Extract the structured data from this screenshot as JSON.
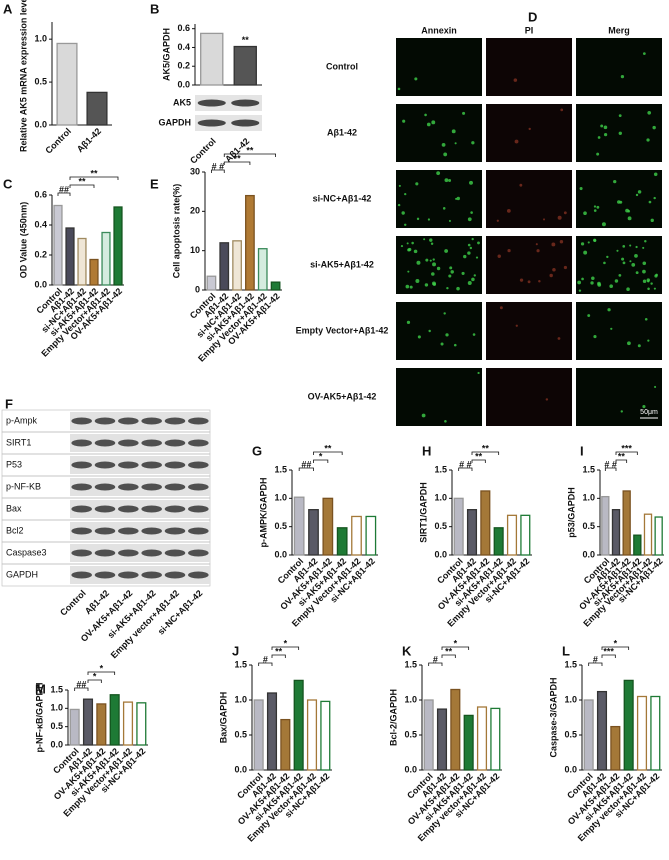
{
  "chart_data": [
    {
      "type": "bar",
      "panel": "A",
      "ylabel": "Relative AK5 mRNA expression level",
      "categories": [
        "Control",
        "Aβ1-42"
      ],
      "values": [
        0.95,
        0.38
      ],
      "fills": [
        "#d9d9d9",
        "#555555"
      ],
      "strokes": [
        "#999999",
        "#333333"
      ],
      "ylim": [
        0,
        1.2
      ],
      "yticks": [
        {
          "value": 0,
          "label": "0.0"
        },
        0.5,
        {
          "value": 1,
          "label": "1.0"
        }
      ],
      "annotations": []
    },
    {
      "type": "bar",
      "panel": "B",
      "ylabel": "AK5/GAPDH",
      "categories": [
        "Control",
        "Aβ1-42"
      ],
      "values": [
        0.55,
        0.41
      ],
      "fills": [
        "#d9d9d9",
        "#555555"
      ],
      "strokes": [
        "#999999",
        "#333333"
      ],
      "ylim": [
        0,
        0.65
      ],
      "yticks": [
        {
          "value": 0,
          "label": "0.0"
        },
        0.2,
        0.4,
        0.6
      ],
      "annotations": [
        "**"
      ],
      "blot_labels": [
        "AK5",
        "GAPDH"
      ]
    },
    {
      "type": "bar",
      "panel": "C",
      "ylabel": "OD Value (450nm)",
      "categories": [
        "Control",
        "Aβ1-42",
        "si-NC+Aβ1-42",
        "si-AK5+Aβ1-42",
        "Empty Vector+Aβ1-42",
        "OV-AK5+Aβ1-42"
      ],
      "values": [
        0.53,
        0.38,
        0.31,
        0.17,
        0.35,
        0.52
      ],
      "fills": [
        "#c9c9d3",
        "#4a4a5a",
        "#efe6d6",
        "#b07a34",
        "#d5ecdf",
        "#1e7a35"
      ],
      "strokes": [
        "#999",
        "#333",
        "#a08a60",
        "#7a5220",
        "#3a8a5a",
        "#14551f"
      ],
      "ylim": [
        0,
        0.6
      ],
      "yticks": [
        {
          "value": 0,
          "label": "0.0"
        },
        0.2,
        0.4,
        0.6
      ],
      "annotations": [
        "##",
        "**",
        "**"
      ]
    },
    {
      "type": "bar",
      "panel": "E",
      "ylabel": "Cell apoptosis rate(%)",
      "categories": [
        "Control",
        "Aβ1-42",
        "si-NC+Aβ1-42",
        "si-AK5+Aβ1-42",
        "Empty Vector+Aβ1-42",
        "OV-AK5+Aβ1-42"
      ],
      "values": [
        3.5,
        12,
        12.5,
        24,
        10.5,
        2
      ],
      "fills": [
        "#c9c9d3",
        "#4a4a5a",
        "#efe6d6",
        "#b07a34",
        "#d5ecdf",
        "#1e7a35"
      ],
      "strokes": [
        "#999",
        "#333",
        "#a08a60",
        "#7a5220",
        "#3a8a5a",
        "#14551f"
      ],
      "ylim": [
        0,
        30
      ],
      "yticks": [
        0,
        10,
        20,
        30
      ],
      "annotations": [
        "# #",
        "**",
        "**"
      ]
    },
    {
      "type": "bar",
      "panel": "G",
      "ylabel": "p-AMPK/GAPDH",
      "categories": [
        "Control",
        "Aβ1-42",
        "OV-AK5+Aβ1-42",
        "si-AK5+Aβ1-42",
        "Empty Vector+Aβ1-42",
        "si-NC+Aβ1-42"
      ],
      "values": [
        1.02,
        0.8,
        1.0,
        0.48,
        0.68,
        0.68
      ],
      "fills": [
        "#b9b9c4",
        "#5a5a66",
        "#a47838",
        "#1e7a35",
        "#ffffff",
        "#ffffff"
      ],
      "strokes": [
        "#999",
        "#333",
        "#7a5220",
        "#14551f",
        "#a47838",
        "#1e7a35"
      ],
      "ylim": [
        0,
        1.5
      ],
      "yticks": [
        {
          "value": 0,
          "label": "0.0"
        },
        0.5,
        {
          "value": 1,
          "label": "1.0"
        },
        1.5
      ],
      "annotations": [
        "##",
        "*",
        "**"
      ]
    },
    {
      "type": "bar",
      "panel": "H",
      "ylabel": "SIRT1/GAPDH",
      "categories": [
        "Control",
        "Aβ1-42",
        "OV-AK5+Aβ1-42",
        "si-AK5+Aβ1-42",
        "Empty Vector+Aβ1-42",
        "si-NC+Aβ1-42"
      ],
      "values": [
        1.0,
        0.8,
        1.13,
        0.48,
        0.7,
        0.7
      ],
      "fills": [
        "#b9b9c4",
        "#5a5a66",
        "#a47838",
        "#1e7a35",
        "#ffffff",
        "#ffffff"
      ],
      "strokes": [
        "#999",
        "#333",
        "#7a5220",
        "#14551f",
        "#a47838",
        "#1e7a35"
      ],
      "ylim": [
        0,
        1.5
      ],
      "yticks": [
        {
          "value": 0,
          "label": "0.0"
        },
        0.5,
        {
          "value": 1,
          "label": "1.0"
        },
        1.5
      ],
      "annotations": [
        "# #",
        "**",
        "**"
      ]
    },
    {
      "type": "bar",
      "panel": "I",
      "ylabel": "p53/GAPDH",
      "categories": [
        "Control",
        "Aβ1-42",
        "OV-AK5+Aβ1-42",
        "si-AK5+Aβ1-42",
        "Empty Vector+Aβ1-42",
        "si-NC+Aβ1-42"
      ],
      "values": [
        1.03,
        0.8,
        1.13,
        0.35,
        0.72,
        0.67
      ],
      "fills": [
        "#b9b9c4",
        "#5a5a66",
        "#a47838",
        "#1e7a35",
        "#ffffff",
        "#ffffff"
      ],
      "strokes": [
        "#999",
        "#333",
        "#7a5220",
        "#14551f",
        "#a47838",
        "#1e7a35"
      ],
      "ylim": [
        0,
        1.5
      ],
      "yticks": [
        {
          "value": 0,
          "label": "0.0"
        },
        0.5,
        {
          "value": 1,
          "label": "1.0"
        },
        1.5
      ],
      "annotations": [
        "# #",
        "**",
        "***"
      ]
    },
    {
      "type": "bar",
      "panel": "M",
      "ylabel": "p-NF-κB/GAPDH",
      "categories": [
        "Control",
        "Aβ1-42",
        "OV-AK5+Aβ1-42",
        "si-AK5+Aβ1-42",
        "Empty Vector+Aβ1-42",
        "si-NC+Aβ1-42"
      ],
      "values": [
        0.97,
        1.25,
        1.12,
        1.37,
        1.17,
        1.15
      ],
      "fills": [
        "#b9b9c4",
        "#5a5a66",
        "#a47838",
        "#1e7a35",
        "#ffffff",
        "#ffffff"
      ],
      "strokes": [
        "#999",
        "#333",
        "#7a5220",
        "#14551f",
        "#a47838",
        "#1e7a35"
      ],
      "ylim": [
        0,
        1.5
      ],
      "yticks": [
        {
          "value": 0,
          "label": "0.0"
        },
        0.5,
        {
          "value": 1,
          "label": "1.0"
        },
        1.5
      ],
      "annotations": [
        "##",
        "*",
        "*"
      ]
    },
    {
      "type": "bar",
      "panel": "J",
      "ylabel": "Bax/GAPDH",
      "categories": [
        "Control",
        "Aβ1-42",
        "OV-AK5+Aβ1-42",
        "si-AK5+Aβ1-42",
        "Empty Vector+Aβ1-42",
        "si-NC+Aβ1-42"
      ],
      "values": [
        1.0,
        1.1,
        0.72,
        1.28,
        1.0,
        0.98
      ],
      "fills": [
        "#b9b9c4",
        "#5a5a66",
        "#a47838",
        "#1e7a35",
        "#ffffff",
        "#ffffff"
      ],
      "strokes": [
        "#999",
        "#333",
        "#7a5220",
        "#14551f",
        "#a47838",
        "#1e7a35"
      ],
      "ylim": [
        0,
        1.5
      ],
      "yticks": [
        {
          "value": 0,
          "label": "0.0"
        },
        0.5,
        {
          "value": 1,
          "label": "1.0"
        },
        1.5
      ],
      "annotations": [
        "#",
        "**",
        "*"
      ]
    },
    {
      "type": "bar",
      "panel": "K",
      "ylabel": "Bcl-2/GAPDH",
      "categories": [
        "Control",
        "Aβ1-42",
        "OV-AK5+Aβ1-42",
        "si-AK5+Aβ1-42",
        "Empty vector+Aβ1-42",
        "si-NC+Aβ1-42"
      ],
      "values": [
        1.0,
        0.87,
        1.15,
        0.78,
        0.9,
        0.88
      ],
      "fills": [
        "#b9b9c4",
        "#5a5a66",
        "#a47838",
        "#1e7a35",
        "#ffffff",
        "#ffffff"
      ],
      "strokes": [
        "#999",
        "#333",
        "#7a5220",
        "#14551f",
        "#a47838",
        "#1e7a35"
      ],
      "ylim": [
        0,
        1.5
      ],
      "yticks": [
        {
          "value": 0,
          "label": "0.0"
        },
        0.5,
        {
          "value": 1,
          "label": "1.0"
        },
        1.5
      ],
      "annotations": [
        "#",
        "**",
        "*"
      ]
    },
    {
      "type": "bar",
      "panel": "L",
      "ylabel": "Caspase-3/GAPDH",
      "categories": [
        "Control",
        "Aβ1-42",
        "OV-AK5+Aβ1-42",
        "si-AK5+Aβ1-42",
        "Empty vector+Aβ1-42",
        "si-NC+Aβ1-42"
      ],
      "values": [
        1.0,
        1.12,
        0.62,
        1.28,
        1.05,
        1.05
      ],
      "fills": [
        "#b9b9c4",
        "#5a5a66",
        "#a47838",
        "#1e7a35",
        "#ffffff",
        "#ffffff"
      ],
      "strokes": [
        "#999",
        "#333",
        "#7a5220",
        "#14551f",
        "#a47838",
        "#1e7a35"
      ],
      "ylim": [
        0,
        1.5
      ],
      "yticks": [
        {
          "value": 0,
          "label": "0.0"
        },
        0.5,
        {
          "value": 1,
          "label": "1.0"
        },
        1.5
      ],
      "annotations": [
        "#",
        "***",
        "*"
      ]
    }
  ],
  "microscopy": {
    "panel": "D",
    "columns": [
      "Annexin",
      "PI",
      "Merg"
    ],
    "rows": [
      "Control",
      "Aβ1-42",
      "si-NC+Aβ1-42",
      "si-AK5+Aβ1-42",
      "Empty Vector+Aβ1-42",
      "OV-AK5+Aβ1-42"
    ],
    "scale_bar": "50μm"
  },
  "western_blot": {
    "panel": "F",
    "proteins": [
      "p-Ampk",
      "SIRT1",
      "P53",
      "p-NF-KB",
      "Bax",
      "Bcl2",
      "Caspase3",
      "GAPDH"
    ],
    "categories": [
      "Control",
      "Aβ1-42",
      "OV-AK5+Aβ1-42",
      "si-AK5+Aβ1-42",
      "Empty vector+Aβ1-42",
      "si-NC+Aβ1-42"
    ]
  }
}
